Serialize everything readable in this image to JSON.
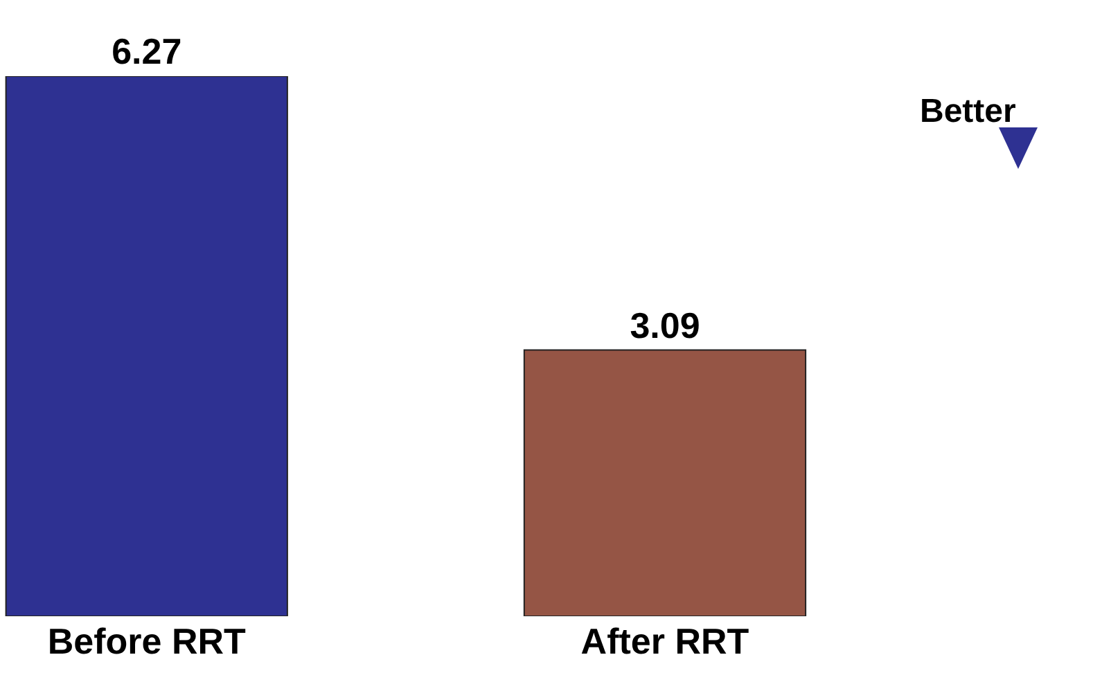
{
  "chart_data": {
    "type": "bar",
    "categories": [
      "Before RRT",
      "After RRT"
    ],
    "values": [
      6.27,
      3.09
    ],
    "colors": [
      "#2e3192",
      "#955545"
    ],
    "data_labels": true,
    "annotations": [
      "Better"
    ]
  }
}
